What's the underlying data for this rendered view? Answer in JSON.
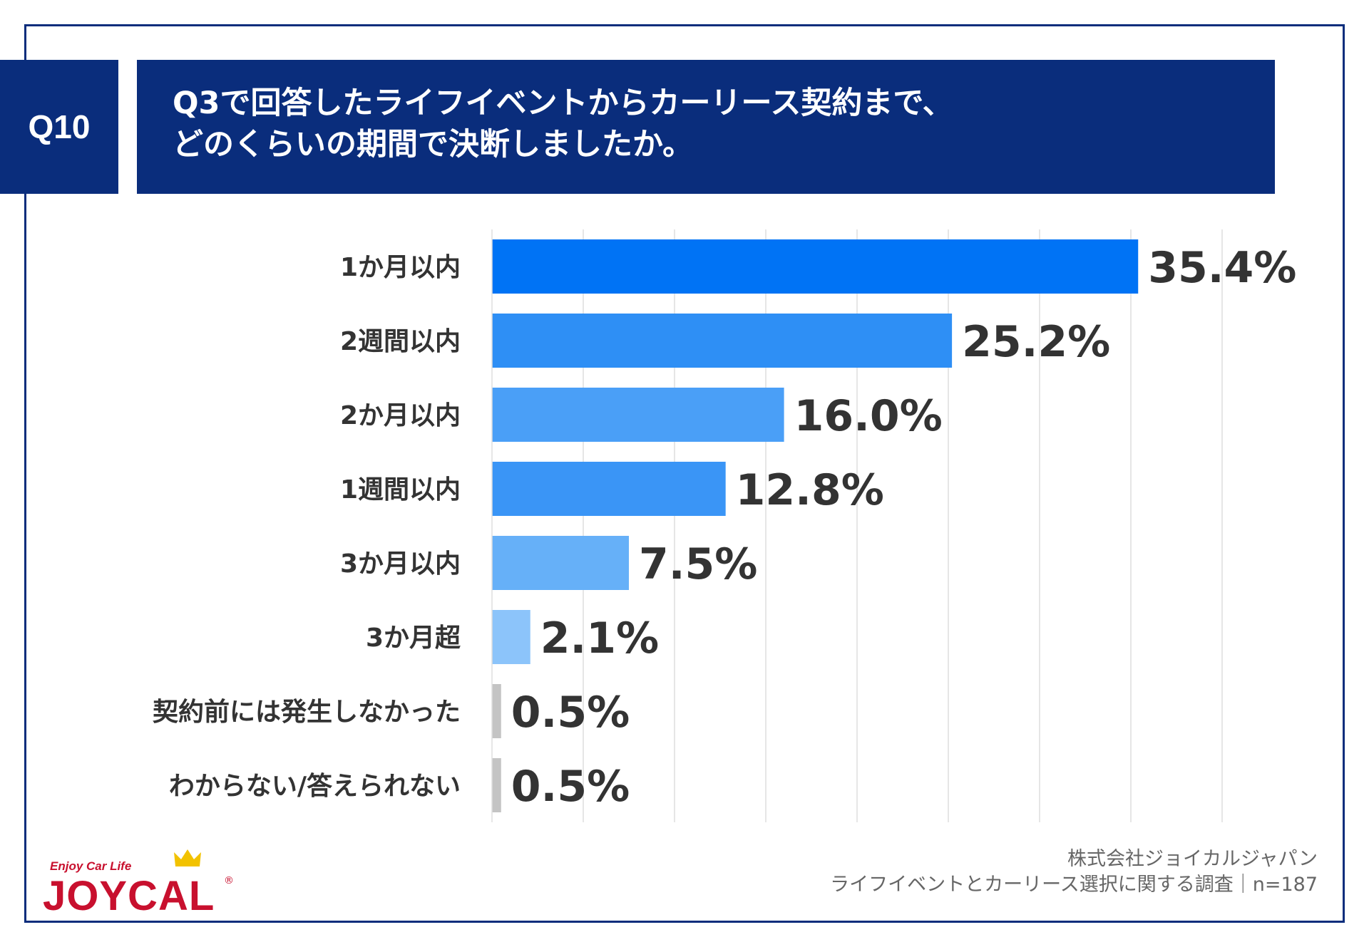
{
  "question": {
    "id": "Q10",
    "title_line1": "Q3で回答したライフイベントからカーリース契約まで、",
    "title_line2": "どのくらいの期間で決断しましたか。"
  },
  "chart_data": {
    "type": "bar",
    "orientation": "horizontal",
    "categories": [
      "1か月以内",
      "2週間以内",
      "2か月以内",
      "1週間以内",
      "3か月以内",
      "3か月超",
      "契約前には発生しなかった",
      "わからない/答えられない"
    ],
    "values": [
      35.4,
      25.2,
      16.0,
      12.8,
      7.5,
      2.1,
      0.5,
      0.5
    ],
    "value_labels": [
      "35.4%",
      "25.2%",
      "16.0%",
      "12.8%",
      "7.5%",
      "2.1%",
      "0.5%",
      "0.5%"
    ],
    "bar_colors": [
      "#0073f5",
      "#2e8ff5",
      "#4a9ff7",
      "#3a95f6",
      "#66b0f8",
      "#8cc4fa",
      "#c4c4c4",
      "#c4c4c4"
    ],
    "xlim": [
      0,
      40
    ],
    "grid_step": 5,
    "grid": true,
    "unit": "%"
  },
  "footer": {
    "company": "株式会社ジョイカルジャパン",
    "survey": "ライフイベントとカーリース選択に関する調査｜n=187"
  },
  "logo": {
    "tagline": "Enjoy Car Life",
    "wordmark": "JOYCAL",
    "registered": "®"
  },
  "colors": {
    "navy": "#0a2d7c",
    "grid": "#dddddd",
    "logo_red": "#c8102e"
  }
}
